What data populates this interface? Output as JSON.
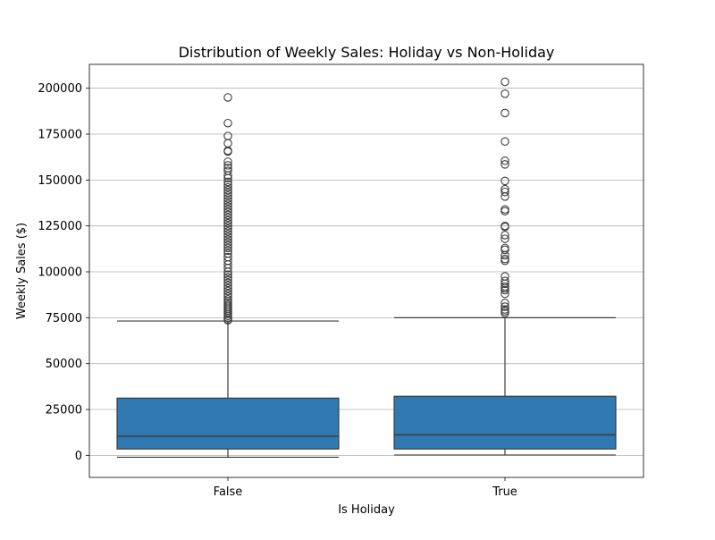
{
  "chart_data": {
    "type": "box",
    "title": "Distribution of Weekly Sales: Holiday vs Non-Holiday",
    "xlabel": "Is Holiday",
    "ylabel": "Weekly Sales ($)",
    "categories": [
      "False",
      "True"
    ],
    "ylim": [
      -12000,
      213000
    ],
    "yticks": [
      0,
      25000,
      50000,
      75000,
      100000,
      125000,
      150000,
      175000,
      200000
    ],
    "grid": "y",
    "box_color": "#2f78b2",
    "edge_color": "#3d3d3d",
    "boxes": [
      {
        "category": "False",
        "whisker_low": -1000,
        "q1": 3500,
        "median": 10400,
        "q3": 31200,
        "whisker_high": 73200,
        "outliers": [
          195000,
          181000,
          174000,
          170000,
          166000,
          165500,
          160000,
          158000,
          156500,
          155000,
          152500,
          151000,
          149000,
          147500,
          146000,
          144500,
          143000,
          141500,
          140000,
          138500,
          137000,
          135500,
          134000,
          132500,
          131000,
          129500,
          128000,
          126500,
          125000,
          123500,
          122000,
          120500,
          119000,
          117500,
          116000,
          114500,
          113000,
          111500,
          110000,
          108000,
          106000,
          104000,
          102000,
          100000,
          98500,
          97000,
          95500,
          94000,
          92500,
          91000,
          89500,
          88000,
          86500,
          85000,
          84000,
          83000,
          82000,
          81000,
          80000,
          79000,
          78000,
          77000,
          76000,
          75000,
          74000,
          73600
        ]
      },
      {
        "category": "True",
        "whisker_low": 200,
        "q1": 3500,
        "median": 11200,
        "q3": 32200,
        "whisker_high": 75000,
        "outliers": [
          203500,
          197000,
          186500,
          171000,
          160500,
          158500,
          149500,
          145000,
          143500,
          141000,
          134000,
          133000,
          125000,
          124500,
          120000,
          118000,
          113000,
          112000,
          109000,
          107000,
          106000,
          97500,
          95000,
          93500,
          92000,
          91000,
          90000,
          88000,
          83000,
          81000,
          79500,
          78500,
          77500
        ]
      }
    ]
  }
}
